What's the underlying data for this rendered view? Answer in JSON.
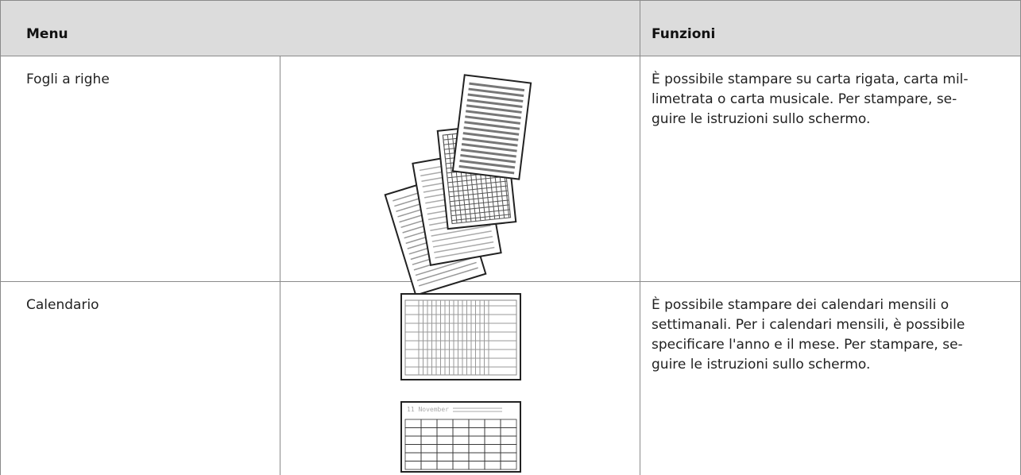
{
  "table": {
    "header": [
      "Menu",
      "Funzioni"
    ],
    "rows": [
      {
        "menu": "Fogli a righe",
        "description": [
          "È possibile stampare su carta rigata, carta mil-",
          "limetrata o carta musicale. Per stampare, se-",
          "guire le istruzioni sullo schermo."
        ]
      },
      {
        "menu": "Calendario",
        "image_text": "11 November",
        "description": [
          "È possibile stampare dei calendari mensili o",
          "settimanali. Per i calendari mensili, è possibile",
          "specificare l'anno e il mese. Per stampare, se-",
          "guire le istruzioni sullo schermo."
        ]
      }
    ]
  }
}
